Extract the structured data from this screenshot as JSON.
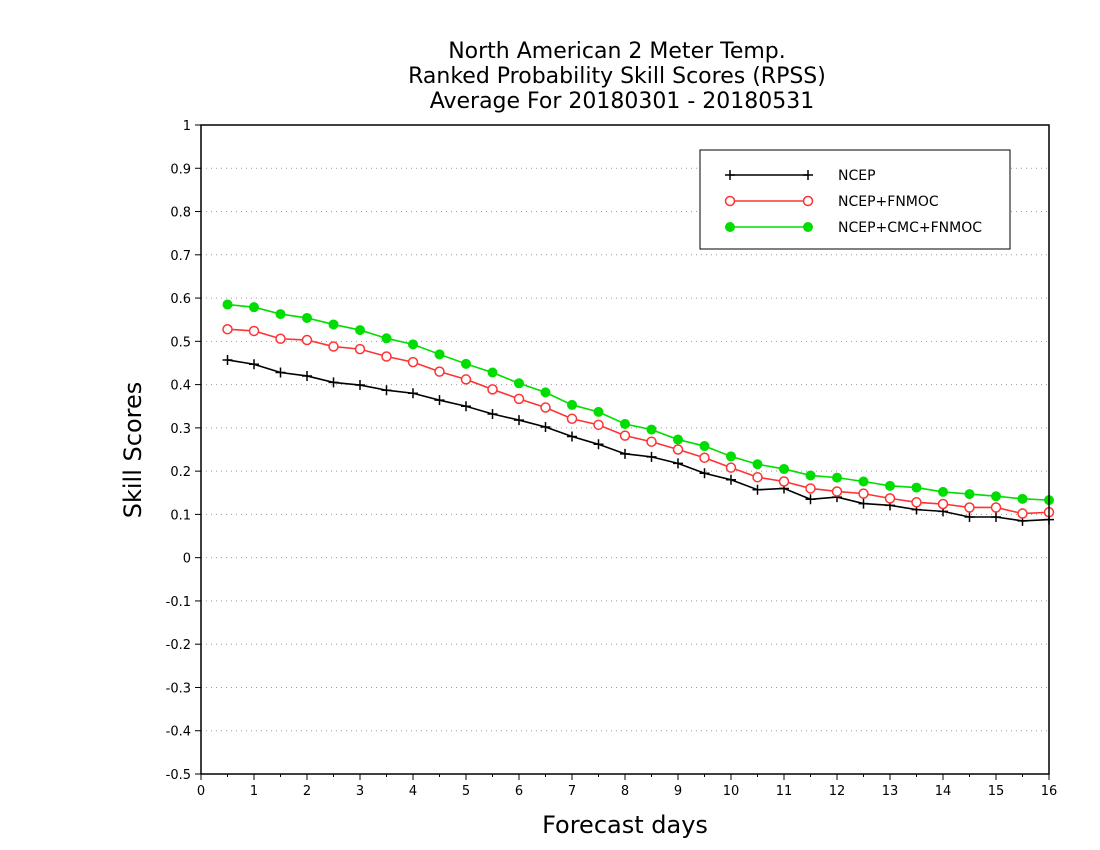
{
  "chart_data": {
    "type": "line",
    "title": [
      "North American 2 Meter Temp.",
      "Ranked Probability Skill Scores (RPSS)",
      "Average For 20180301 - 20180531"
    ],
    "xlabel": "Forecast days",
    "ylabel": "Skill Scores",
    "xlim": [
      0,
      16
    ],
    "ylim": [
      -0.5,
      1
    ],
    "xticks": [
      "0",
      "1",
      "2",
      "3",
      "4",
      "5",
      "6",
      "7",
      "8",
      "9",
      "10",
      "11",
      "12",
      "13",
      "14",
      "15",
      "16"
    ],
    "yticks": [
      "1",
      "0.9",
      "0.8",
      "0.7",
      "0.6",
      "0.5",
      "0.4",
      "0.3",
      "0.2",
      "0.1",
      "0",
      "-0.1",
      "-0.2",
      "-0.3",
      "-0.4",
      "-0.5"
    ],
    "grid": "horizontal dotted",
    "legend_position": "top-right",
    "x": [
      0.5,
      1,
      1.5,
      2,
      2.5,
      3,
      3.5,
      4,
      4.5,
      5,
      5.5,
      6,
      6.5,
      7,
      7.5,
      8,
      8.5,
      9,
      9.5,
      10,
      10.5,
      11,
      11.5,
      12,
      12.5,
      13,
      13.5,
      14,
      14.5,
      15,
      15.5,
      16
    ],
    "series": [
      {
        "name": "NCEP",
        "color": "#000000",
        "marker": "plus",
        "values": [
          0.457,
          0.447,
          0.428,
          0.42,
          0.405,
          0.399,
          0.387,
          0.38,
          0.364,
          0.35,
          0.332,
          0.318,
          0.302,
          0.28,
          0.262,
          0.24,
          0.233,
          0.218,
          0.195,
          0.18,
          0.157,
          0.16,
          0.135,
          0.14,
          0.125,
          0.121,
          0.111,
          0.107,
          0.094,
          0.094,
          0.085,
          0.088
        ]
      },
      {
        "name": "NCEP+FNMOC",
        "color": "#ff3333",
        "marker": "open-circle",
        "values": [
          0.528,
          0.524,
          0.506,
          0.503,
          0.488,
          0.482,
          0.465,
          0.452,
          0.43,
          0.412,
          0.389,
          0.367,
          0.347,
          0.321,
          0.307,
          0.282,
          0.268,
          0.25,
          0.231,
          0.208,
          0.186,
          0.176,
          0.16,
          0.153,
          0.148,
          0.137,
          0.128,
          0.124,
          0.116,
          0.116,
          0.102,
          0.105
        ]
      },
      {
        "name": "NCEP+CMC+FNMOC",
        "color": "#00dd00",
        "marker": "filled-circle",
        "values": [
          0.585,
          0.579,
          0.563,
          0.554,
          0.539,
          0.526,
          0.507,
          0.493,
          0.47,
          0.448,
          0.428,
          0.403,
          0.382,
          0.353,
          0.337,
          0.309,
          0.296,
          0.273,
          0.258,
          0.234,
          0.216,
          0.205,
          0.19,
          0.185,
          0.176,
          0.166,
          0.162,
          0.152,
          0.147,
          0.142,
          0.136,
          0.133
        ]
      }
    ]
  }
}
